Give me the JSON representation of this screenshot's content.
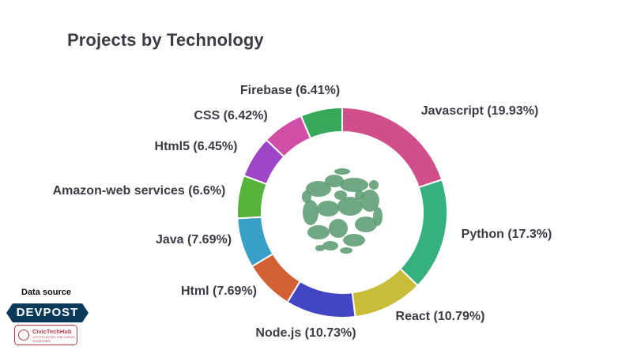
{
  "chart_data": {
    "type": "pie",
    "donut": true,
    "title": "Projects by Technology",
    "slices": [
      {
        "label": "Javascript (19.93%)",
        "name": "Javascript",
        "value": 19.93,
        "color": "#d04f8a"
      },
      {
        "label": "Python (17.3%)",
        "name": "Python",
        "value": 17.3,
        "color": "#36b07d"
      },
      {
        "label": "React (10.79%)",
        "name": "React",
        "value": 10.79,
        "color": "#c8bc38"
      },
      {
        "label": "Node.js (10.73%)",
        "name": "Node.js",
        "value": 10.73,
        "color": "#4346c4"
      },
      {
        "label": "Html (7.69%)",
        "name": "Html",
        "value": 7.69,
        "color": "#d16034"
      },
      {
        "label": "Java (7.69%)",
        "name": "Java",
        "value": 7.69,
        "color": "#3a9fc8"
      },
      {
        "label": "Amazon-web services (6.6%)",
        "name": "Amazon-web services",
        "value": 6.6,
        "color": "#56b23a"
      },
      {
        "label": "Html5 (6.45%)",
        "name": "Html5",
        "value": 6.45,
        "color": "#9e46c8"
      },
      {
        "label": "CSS (6.42%)",
        "name": "CSS",
        "value": 6.42,
        "color": "#d04fa6"
      },
      {
        "label": "Firebase (6.41%)",
        "name": "Firebase",
        "value": 6.41,
        "color": "#35a85a"
      }
    ]
  },
  "footer": {
    "source_label": "Data source",
    "source_name": "DEVPOST",
    "partner_name": "CivicTechHub",
    "partner_tagline": "LET'S FLATTEN THE CURVE TOGETHER!"
  }
}
